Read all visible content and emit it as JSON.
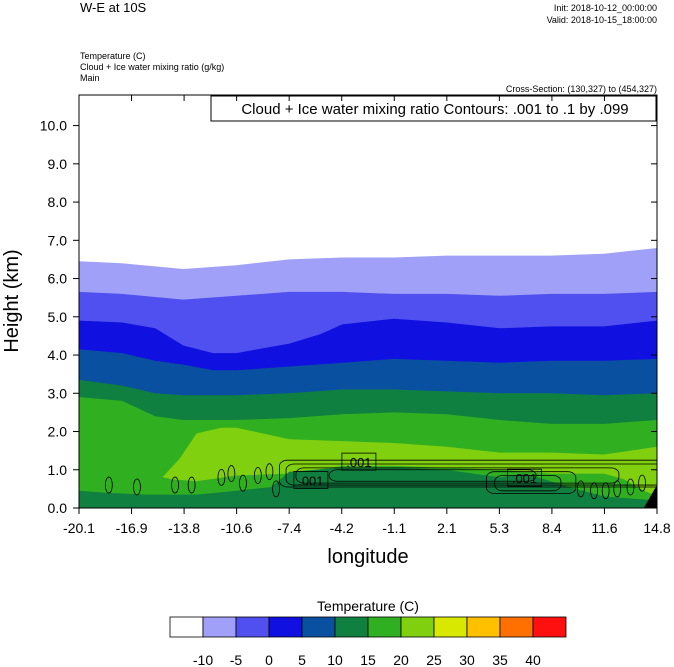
{
  "header": {
    "title": "W-E at 10S",
    "init": "Init: 2018-10-12_00:00:00",
    "valid": "Valid: 2018-10-15_18:00:00",
    "fields": [
      "Temperature   (C)",
      "Cloud + Ice water mixing ratio   (g/kg)",
      "Main"
    ],
    "cross_section": "Cross-Section: (130,327) to (454,327)"
  },
  "chart_data": {
    "type": "filled-contour",
    "contour_note": "Cloud + Ice water mixing ratio Contours: .001 to .1 by .099",
    "xlabel": "longitude",
    "ylabel": "Height (km)",
    "xlim": [
      -20.1,
      14.8
    ],
    "ylim": [
      0,
      10.8
    ],
    "x_ticks": [
      "-20.1",
      "-16.9",
      "-13.8",
      "-10.6",
      "-7.4",
      "-4.2",
      "-1.1",
      "2.1",
      "5.3",
      "8.4",
      "11.6",
      "14.8"
    ],
    "y_ticks": [
      "0.0",
      "1.0",
      "2.0",
      "3.0",
      "4.0",
      "5.0",
      "6.0",
      "7.0",
      "8.0",
      "9.0",
      "10.0"
    ],
    "contour_labels": [
      ".001",
      ".001",
      ".001"
    ],
    "colorbar": {
      "title": "Temperature  (C)",
      "levels": [
        "-10",
        "-5",
        "0",
        "5",
        "10",
        "15",
        "20",
        "25",
        "30",
        "35",
        "40"
      ],
      "colors": [
        "#ffffff",
        "#a0a0f8",
        "#5050f0",
        "#1010e0",
        "#0a50a0",
        "#108040",
        "#30b020",
        "#80d010",
        "#d8e800",
        "#ffc000",
        "#ff7000",
        "#ff1010"
      ]
    },
    "bands": [
      {
        "color": "#a0a0f8",
        "top": [
          [
            -20.1,
            6.45
          ],
          [
            -17.5,
            6.4
          ],
          [
            -13.8,
            6.25
          ],
          [
            -10.6,
            6.35
          ],
          [
            -7.4,
            6.5
          ],
          [
            -4.2,
            6.55
          ],
          [
            -1.1,
            6.55
          ],
          [
            2.1,
            6.6
          ],
          [
            5.3,
            6.6
          ],
          [
            8.4,
            6.6
          ],
          [
            11.6,
            6.65
          ],
          [
            14.8,
            6.8
          ]
        ]
      },
      {
        "color": "#5050f0",
        "top": [
          [
            -20.1,
            5.65
          ],
          [
            -17.5,
            5.6
          ],
          [
            -13.8,
            5.45
          ],
          [
            -10.6,
            5.55
          ],
          [
            -7.4,
            5.65
          ],
          [
            -4.2,
            5.65
          ],
          [
            -1.1,
            5.6
          ],
          [
            2.1,
            5.6
          ],
          [
            5.3,
            5.55
          ],
          [
            8.4,
            5.6
          ],
          [
            11.6,
            5.6
          ],
          [
            14.8,
            5.65
          ]
        ]
      },
      {
        "color": "#1010e0",
        "top": [
          [
            -20.1,
            4.9
          ],
          [
            -17.5,
            4.85
          ],
          [
            -15.5,
            4.7
          ],
          [
            -13.8,
            4.25
          ],
          [
            -12.0,
            4.05
          ],
          [
            -10.6,
            4.05
          ],
          [
            -7.4,
            4.3
          ],
          [
            -5.5,
            4.55
          ],
          [
            -4.2,
            4.8
          ],
          [
            -1.1,
            4.95
          ],
          [
            2.1,
            4.85
          ],
          [
            5.3,
            4.7
          ],
          [
            8.4,
            4.75
          ],
          [
            11.6,
            4.75
          ],
          [
            14.8,
            4.9
          ]
        ]
      },
      {
        "color": "#0a50a0",
        "top": [
          [
            -20.1,
            4.15
          ],
          [
            -17.5,
            4.05
          ],
          [
            -15.5,
            3.85
          ],
          [
            -13.8,
            3.75
          ],
          [
            -12.0,
            3.6
          ],
          [
            -10.6,
            3.6
          ],
          [
            -7.4,
            3.7
          ],
          [
            -4.2,
            3.8
          ],
          [
            -1.1,
            3.9
          ],
          [
            2.1,
            3.85
          ],
          [
            5.3,
            3.8
          ],
          [
            8.4,
            3.85
          ],
          [
            11.6,
            3.85
          ],
          [
            14.8,
            3.9
          ]
        ]
      },
      {
        "color": "#108040",
        "top": [
          [
            -20.1,
            3.35
          ],
          [
            -17.5,
            3.2
          ],
          [
            -15.5,
            3.0
          ],
          [
            -13.8,
            2.95
          ],
          [
            -10.6,
            2.95
          ],
          [
            -7.4,
            3.0
          ],
          [
            -4.2,
            3.1
          ],
          [
            -1.1,
            3.1
          ],
          [
            2.1,
            3.05
          ],
          [
            5.3,
            3.0
          ],
          [
            8.4,
            3.0
          ],
          [
            11.6,
            2.95
          ],
          [
            14.8,
            3.0
          ]
        ]
      },
      {
        "color": "#30b020",
        "top": [
          [
            -20.1,
            2.9
          ],
          [
            -17.5,
            2.8
          ],
          [
            -15.5,
            2.4
          ],
          [
            -13.8,
            2.3
          ],
          [
            -10.6,
            2.3
          ],
          [
            -7.4,
            2.35
          ],
          [
            -4.2,
            2.45
          ],
          [
            -1.1,
            2.5
          ],
          [
            2.1,
            2.45
          ],
          [
            5.3,
            2.3
          ],
          [
            8.4,
            2.2
          ],
          [
            11.6,
            2.2
          ],
          [
            14.8,
            2.3
          ]
        ]
      },
      {
        "color": "#80d010",
        "top": [
          [
            -20.1,
            0.45
          ],
          [
            -17.5,
            0.5
          ],
          [
            -15.5,
            0.6
          ],
          [
            -14.0,
            1.3
          ],
          [
            -13.0,
            1.95
          ],
          [
            -11.5,
            2.1
          ],
          [
            -10.6,
            2.1
          ],
          [
            -7.4,
            1.8
          ],
          [
            -4.2,
            1.75
          ],
          [
            -1.1,
            1.7
          ],
          [
            2.1,
            1.6
          ],
          [
            5.3,
            1.45
          ],
          [
            8.4,
            1.45
          ],
          [
            11.6,
            1.4
          ],
          [
            14.8,
            1.6
          ]
        ]
      },
      {
        "color": "#30b020",
        "top": [
          [
            -20.1,
            1.15
          ],
          [
            -17.5,
            1.0
          ],
          [
            -16.0,
            0.9
          ],
          [
            -14.5,
            0.75
          ],
          [
            -13.0,
            0.7
          ],
          [
            -10.6,
            0.85
          ],
          [
            -7.4,
            0.9
          ],
          [
            -4.2,
            1.1
          ],
          [
            -1.1,
            1.1
          ],
          [
            2.1,
            1.05
          ],
          [
            5.3,
            1.0
          ],
          [
            8.4,
            0.9
          ],
          [
            11.6,
            0.9
          ],
          [
            12.8,
            0.75
          ],
          [
            13.8,
            0.5
          ],
          [
            14.8,
            0.3
          ]
        ]
      },
      {
        "color": "#108040",
        "top": [
          [
            -20.1,
            0.45
          ],
          [
            -18.5,
            0.4
          ],
          [
            -16.0,
            0.35
          ],
          [
            -13.0,
            0.35
          ],
          [
            -10.6,
            0.45
          ],
          [
            -8.5,
            0.55
          ],
          [
            -7.4,
            0.95
          ],
          [
            -4.2,
            1.05
          ],
          [
            -1.1,
            1.05
          ],
          [
            2.1,
            1.0
          ],
          [
            5.3,
            0.8
          ],
          [
            6.8,
            0.9
          ],
          [
            8.0,
            0.75
          ],
          [
            9.5,
            0.55
          ],
          [
            11.6,
            0.3
          ],
          [
            14.8,
            0.2
          ]
        ]
      }
    ]
  }
}
